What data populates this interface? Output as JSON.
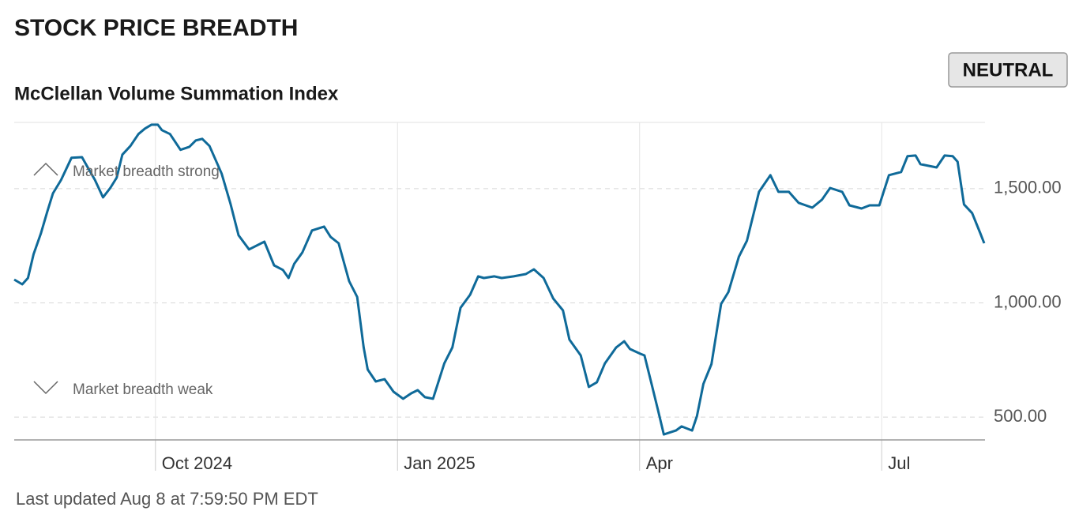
{
  "chart_data": {
    "type": "line",
    "title": "STOCK PRICE BREADTH",
    "subtitle": "McClellan Volume Summation Index",
    "rating": "NEUTRAL",
    "annotations": [
      "Market breadth strong",
      "Market breadth weak"
    ],
    "footer": "Last updated Aug 8 at 7:59:50 PM EDT",
    "color": "#0f6a99",
    "grid": true,
    "xlim": [
      7.25,
      19.28
    ],
    "xticks": [
      {
        "value": 9,
        "label": "Oct 2024"
      },
      {
        "value": 12,
        "label": "Jan 2025"
      },
      {
        "value": 15,
        "label": "Apr"
      },
      {
        "value": 18,
        "label": "Jul"
      }
    ],
    "ylim": [
      400,
      1790
    ],
    "yticks": [
      {
        "value": 500,
        "label": "500.00"
      },
      {
        "value": 1000,
        "label": "1,000.00"
      },
      {
        "value": 1500,
        "label": "1,500.00"
      }
    ],
    "x": [
      7.25,
      7.35,
      7.42,
      7.49,
      7.58,
      7.66,
      7.73,
      7.83,
      7.96,
      8.09,
      8.15,
      8.25,
      8.35,
      8.44,
      8.52,
      8.59,
      8.69,
      8.79,
      8.87,
      8.95,
      9.03,
      9.08,
      9.18,
      9.31,
      9.42,
      9.5,
      9.58,
      9.67,
      9.82,
      9.93,
      10.03,
      10.16,
      10.35,
      10.47,
      10.58,
      10.65,
      10.72,
      10.82,
      10.94,
      11.09,
      11.17,
      11.27,
      11.4,
      11.5,
      11.58,
      11.63,
      11.73,
      11.84,
      11.95,
      12.07,
      12.17,
      12.25,
      12.34,
      12.44,
      12.58,
      12.68,
      12.78,
      12.9,
      13.0,
      13.07,
      13.2,
      13.29,
      13.44,
      13.59,
      13.69,
      13.81,
      13.93,
      14.05,
      14.13,
      14.27,
      14.37,
      14.47,
      14.57,
      14.71,
      14.81,
      14.88,
      15.01,
      15.06,
      15.15,
      15.23,
      15.3,
      15.45,
      15.52,
      15.65,
      15.71,
      15.79,
      15.89,
      16.01,
      16.1,
      16.23,
      16.33,
      16.48,
      16.62,
      16.72,
      16.85,
      16.97,
      17.14,
      17.26,
      17.36,
      17.51,
      17.6,
      17.75,
      17.85,
      17.97,
      18.09,
      18.24,
      18.32,
      18.42,
      18.48,
      18.68,
      18.78,
      18.88,
      18.94,
      19.02,
      19.12,
      19.22,
      19.27
    ],
    "values": [
      1102,
      1081,
      1109,
      1213,
      1303,
      1400,
      1479,
      1538,
      1635,
      1638,
      1600,
      1538,
      1462,
      1503,
      1548,
      1649,
      1687,
      1739,
      1763,
      1780,
      1780,
      1756,
      1739,
      1670,
      1683,
      1711,
      1718,
      1687,
      1566,
      1434,
      1296,
      1234,
      1268,
      1164,
      1144,
      1109,
      1171,
      1220,
      1317,
      1334,
      1289,
      1261,
      1095,
      1026,
      805,
      708,
      656,
      666,
      611,
      580,
      604,
      618,
      587,
      580,
      735,
      805,
      978,
      1036,
      1116,
      1109,
      1116,
      1109,
      1116,
      1126,
      1147,
      1109,
      1019,
      967,
      839,
      770,
      632,
      652,
      735,
      805,
      832,
      798,
      777,
      770,
      642,
      528,
      424,
      441,
      459,
      441,
      504,
      645,
      732,
      995,
      1047,
      1202,
      1272,
      1486,
      1559,
      1486,
      1486,
      1438,
      1417,
      1452,
      1503,
      1486,
      1427,
      1413,
      1427,
      1427,
      1559,
      1573,
      1642,
      1645,
      1607,
      1593,
      1645,
      1642,
      1618,
      1431,
      1393,
      1306,
      1261
    ]
  }
}
